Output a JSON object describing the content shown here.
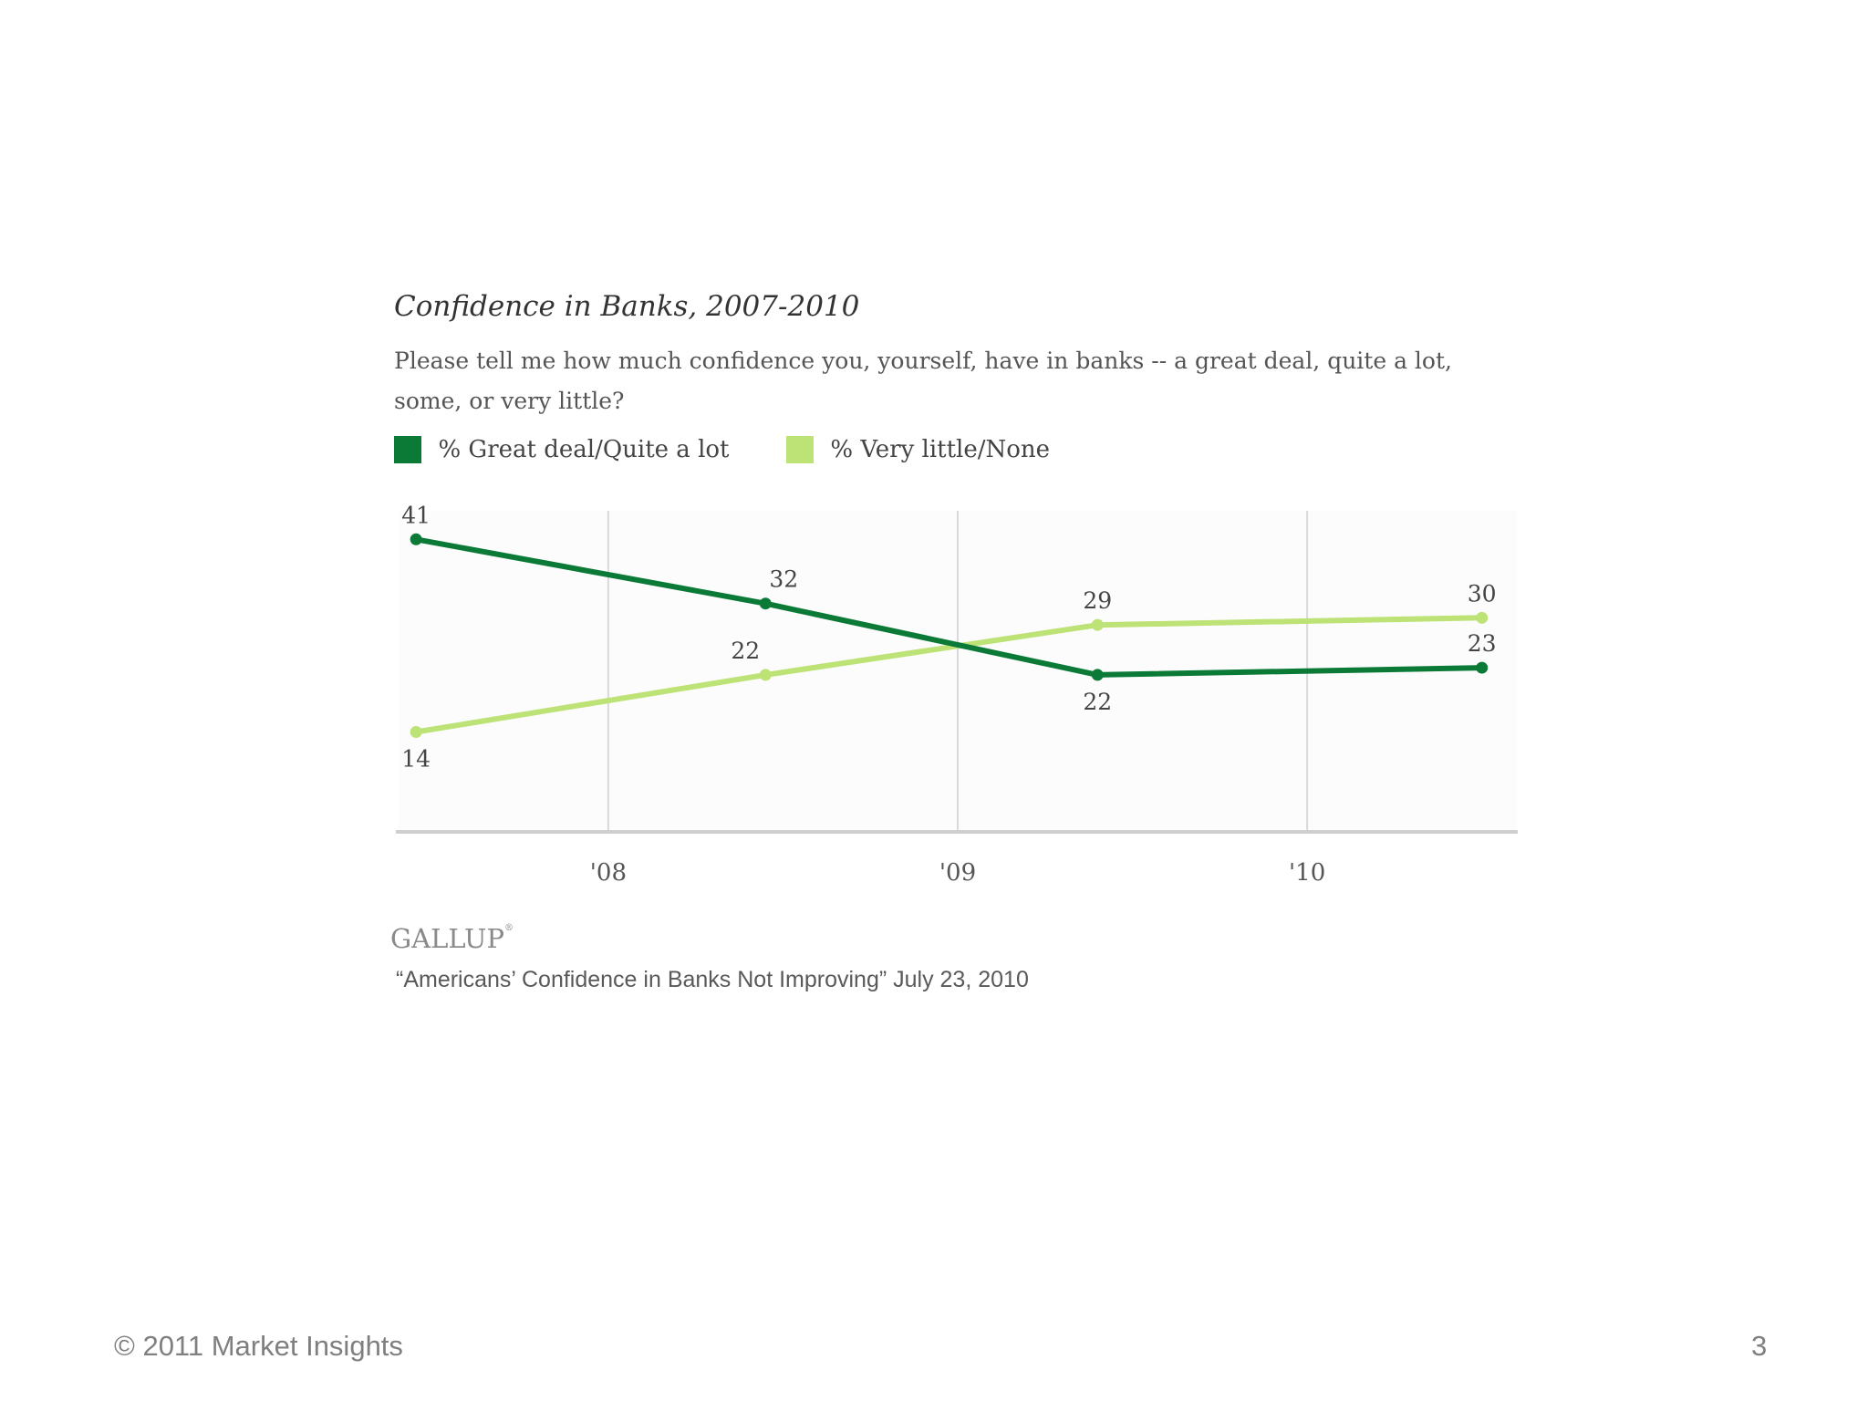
{
  "footer": {
    "copyright": "© 2011 Market Insights",
    "page_number": "3"
  },
  "source": {
    "logo_text": "GALLUP",
    "logo_mark": "®",
    "note": "“Americans’ Confidence in Banks Not Improving” July 23, 2010"
  },
  "chart_data": {
    "type": "line",
    "title": "Confidence in Banks, 2007-2010",
    "subtitle": "Please tell me how much confidence you, yourself, have in banks -- a great deal, quite a lot, some, or very little?",
    "xlabel": "",
    "ylabel": "",
    "x_tick_labels": [
      "'08",
      "'09",
      "'10"
    ],
    "x_tick_years": [
      2008,
      2009,
      2010
    ],
    "xlim": [
      2007.4,
      2010.6
    ],
    "ylim": [
      0,
      45
    ],
    "grid": "vertical",
    "legend_position": "top-left",
    "x": [
      2007.45,
      2008.45,
      2009.4,
      2010.5
    ],
    "series": [
      {
        "name": "% Great deal/Quite a lot",
        "color": "#0b7a36",
        "values": [
          41,
          32,
          22,
          23
        ]
      },
      {
        "name": "% Very little/None",
        "color": "#bde276",
        "values": [
          14,
          22,
          29,
          30
        ]
      }
    ],
    "data_labels": [
      {
        "series": 0,
        "point": 0,
        "text": "41",
        "pos": "above"
      },
      {
        "series": 0,
        "point": 1,
        "text": "32",
        "pos": "above"
      },
      {
        "series": 0,
        "point": 2,
        "text": "22",
        "pos": "below"
      },
      {
        "series": 0,
        "point": 3,
        "text": "23",
        "pos": "above"
      },
      {
        "series": 1,
        "point": 0,
        "text": "14",
        "pos": "below"
      },
      {
        "series": 1,
        "point": 1,
        "text": "22",
        "pos": "above"
      },
      {
        "series": 1,
        "point": 2,
        "text": "29",
        "pos": "above"
      },
      {
        "series": 1,
        "point": 3,
        "text": "30",
        "pos": "above"
      }
    ]
  }
}
